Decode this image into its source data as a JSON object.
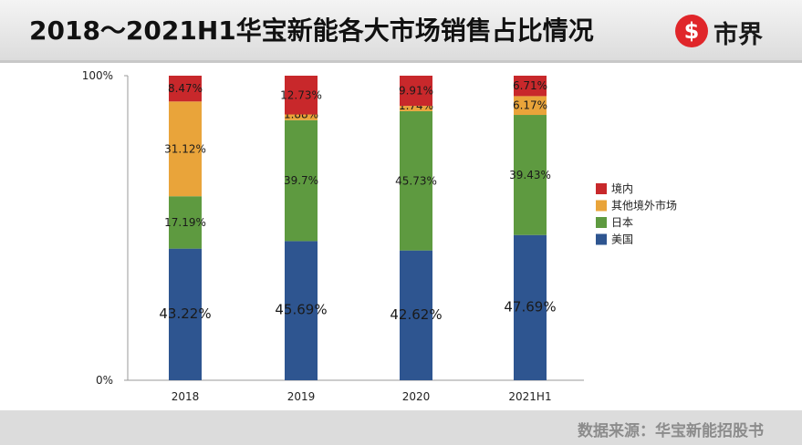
{
  "header": {
    "title": "2018～2021H1华宝新能各大市场销售占比情况",
    "logo_text": "市界",
    "logo_glyph": "$"
  },
  "footer": {
    "source": "数据来源：华宝新能招股书"
  },
  "colors": {
    "logo_red": "#e0262a"
  },
  "chart_data": {
    "type": "bar",
    "stacked": true,
    "categories": [
      "2018",
      "2019",
      "2020",
      "2021H1"
    ],
    "ylim": [
      0,
      100
    ],
    "yticks": [
      {
        "value": 0,
        "label": "0%"
      },
      {
        "value": 100,
        "label": "100%"
      }
    ],
    "grid": false,
    "legend_position": "right",
    "series": [
      {
        "name": "美国",
        "color": "#2e5590",
        "values": [
          43.22,
          45.69,
          42.62,
          47.69
        ],
        "labels": [
          "43.22%",
          "45.69%",
          "42.62%",
          "47.69%"
        ]
      },
      {
        "name": "日本",
        "color": "#5e9a40",
        "values": [
          17.19,
          39.7,
          45.73,
          39.43
        ],
        "labels": [
          "17.19%",
          "39.7%",
          "45.73%",
          "39.43%"
        ]
      },
      {
        "name": "其他境外市场",
        "color": "#e9a43a",
        "values": [
          31.12,
          1.88,
          1.74,
          6.17
        ],
        "labels": [
          "31.12%",
          "1.88%",
          "1.74%",
          "6.17%"
        ]
      },
      {
        "name": "境内",
        "color": "#c8282b",
        "values": [
          8.47,
          12.73,
          9.91,
          6.71
        ],
        "labels": [
          "8.47%",
          "12.73%",
          "9.91%",
          "6.71%"
        ]
      }
    ]
  }
}
